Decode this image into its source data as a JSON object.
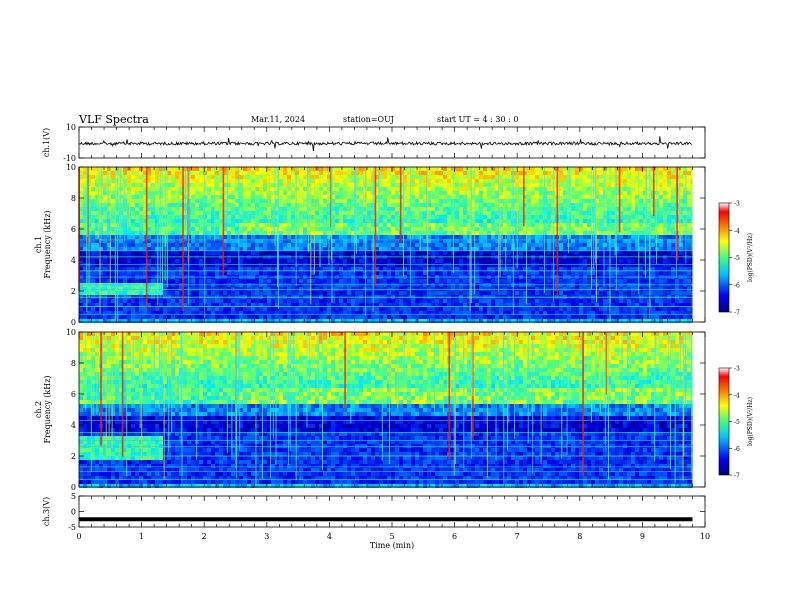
{
  "header": {
    "title": "VLF Spectra",
    "date": "Mar.11, 2024",
    "station": "station=OUJ",
    "start": "start  UT =  4 : 30 : 0"
  },
  "chart_data": [
    {
      "type": "line",
      "panel": "ch1-waveform",
      "ylabel": "ch.1(V)",
      "ylim": [
        -10,
        10
      ],
      "yticks": [
        10,
        -10
      ],
      "xlim": [
        0,
        10
      ],
      "x": [
        0,
        1,
        2,
        3,
        4,
        5,
        6,
        7,
        8,
        9,
        9.8
      ],
      "y": [
        0,
        0,
        0,
        0,
        0,
        0,
        0,
        0,
        0,
        0,
        0
      ]
    },
    {
      "type": "heatmap",
      "panel": "ch1-spectrogram",
      "ylabel": "ch.1\nFrequency (kHz)",
      "ylim": [
        0,
        10
      ],
      "yticks": [
        0,
        2,
        4,
        6,
        8,
        10
      ],
      "xlim": [
        0,
        10
      ],
      "colorbar": {
        "label": "log(PSD)(V²/Hz)",
        "range": [
          -7,
          -3
        ],
        "ticks": [
          -3,
          -4,
          -5,
          -6,
          -7
        ]
      },
      "events": [
        {
          "t_start": 0,
          "t_end": 1.3,
          "f_low": 1.8,
          "f_high": 2.6
        }
      ],
      "lines_khz": [
        0.5,
        1.0,
        1.6,
        2.1,
        2.4,
        2.9,
        3.3,
        3.7,
        4.2,
        4.6,
        5.3
      ],
      "chorus_band_khz": [
        5.8,
        6.4
      ]
    },
    {
      "type": "heatmap",
      "panel": "ch2-spectrogram",
      "ylabel": "ch.2\nFrequency (kHz)",
      "ylim": [
        0,
        10
      ],
      "yticks": [
        0,
        2,
        4,
        6,
        8,
        10
      ],
      "xlim": [
        0,
        10
      ],
      "colorbar": {
        "label": "log(PSD)(V²/Hz)",
        "range": [
          -7,
          -3
        ],
        "ticks": [
          -3,
          -4,
          -5,
          -6,
          -7
        ]
      },
      "events": [
        {
          "t_start": 0,
          "t_end": 1.3,
          "f_low": 1.8,
          "f_high": 3.3
        }
      ],
      "lines_khz": [
        0.5,
        1.0,
        1.3,
        2.0,
        2.6,
        3.0,
        3.5,
        4.3
      ],
      "chorus_band_khz": [
        5.6,
        6.7
      ]
    },
    {
      "type": "line",
      "panel": "ch3-waveform",
      "ylabel": "ch.3(V)",
      "ylim": [
        -5,
        5
      ],
      "yticks": [
        5,
        0,
        -5
      ],
      "xlim": [
        0,
        10
      ],
      "xlabel": "Time (min)",
      "xticks": [
        0,
        1,
        2,
        3,
        4,
        5,
        6,
        7,
        8,
        9,
        10
      ],
      "x": [
        0,
        9.8
      ],
      "y": [
        -2.5,
        -2.5
      ]
    }
  ],
  "colors": {
    "colormap": [
      "#00007f",
      "#0000ff",
      "#00b0ff",
      "#00ffff",
      "#50ff50",
      "#ffff00",
      "#ff8000",
      "#ff0000",
      "#ffffff"
    ],
    "background": "#ffffff",
    "axis": "#000000"
  }
}
